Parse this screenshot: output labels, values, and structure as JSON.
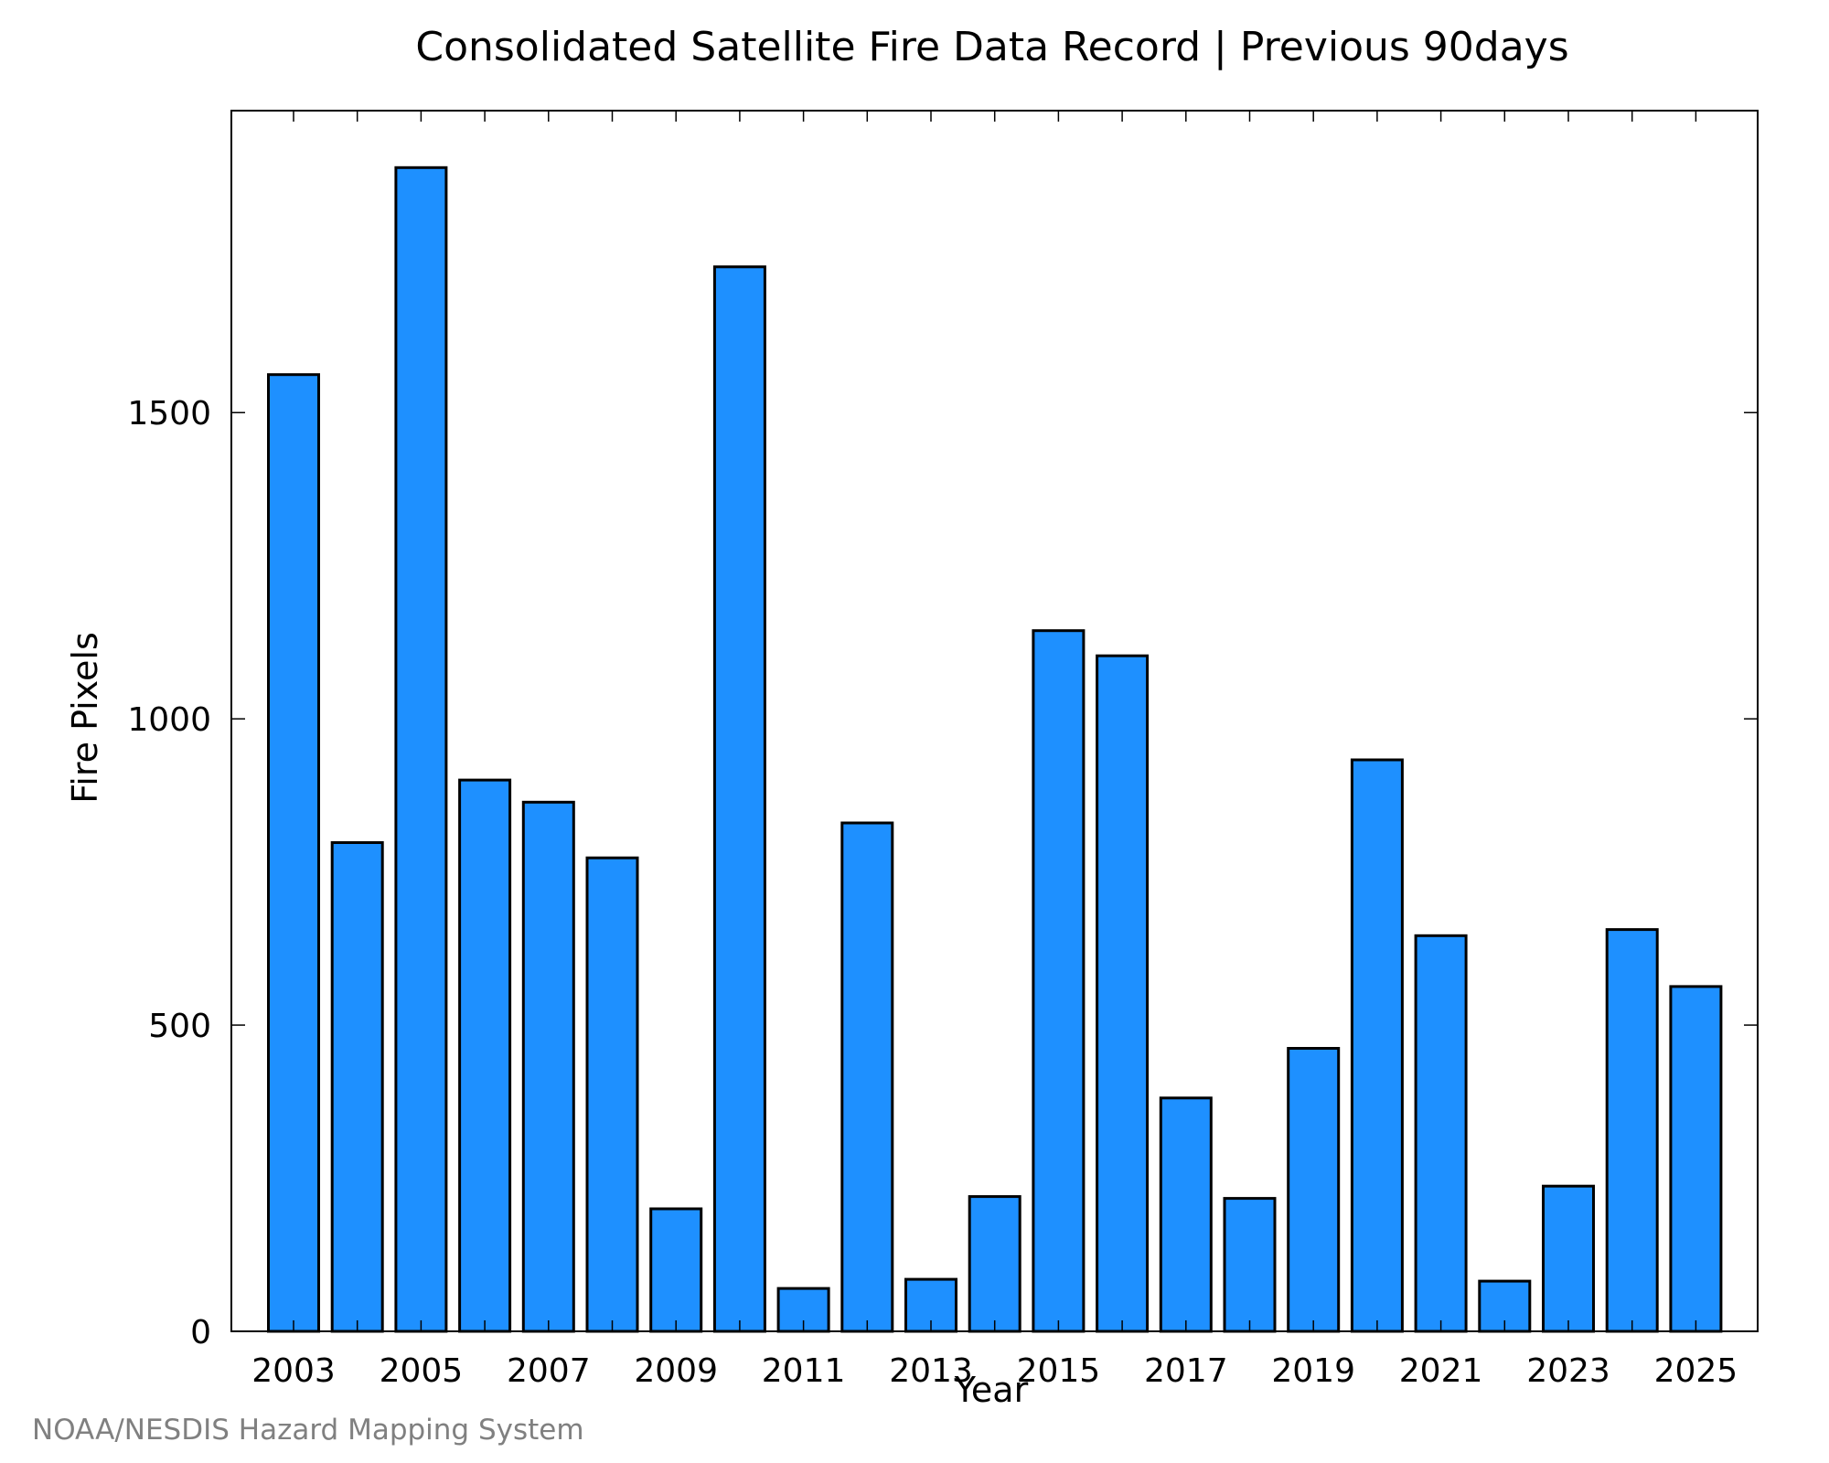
{
  "chart_data": {
    "type": "bar",
    "title": "Consolidated Satellite Fire Data Record | Previous 90days",
    "xlabel": "Year",
    "ylabel": "Fire Pixels",
    "categories": [
      "2003",
      "2004",
      "2005",
      "2006",
      "2007",
      "2008",
      "2009",
      "2010",
      "2011",
      "2012",
      "2013",
      "2014",
      "2015",
      "2016",
      "2017",
      "2018",
      "2019",
      "2020",
      "2021",
      "2022",
      "2023",
      "2024",
      "2025"
    ],
    "values": [
      1562,
      798,
      1900,
      900,
      864,
      773,
      200,
      1738,
      70,
      830,
      85,
      220,
      1144,
      1103,
      381,
      217,
      462,
      933,
      646,
      82,
      237,
      656,
      563
    ],
    "x_tick_labels": [
      "2003",
      "2005",
      "2007",
      "2009",
      "2011",
      "2013",
      "2015",
      "2017",
      "2019",
      "2021",
      "2023",
      "2025"
    ],
    "y_ticks": [
      0,
      500,
      1000,
      1500
    ],
    "ylim": [
      0,
      1993
    ],
    "bar_color": "#1e90ff",
    "grid": false,
    "legend": "none"
  },
  "credit": "NOAA/NESDIS Hazard Mapping System"
}
